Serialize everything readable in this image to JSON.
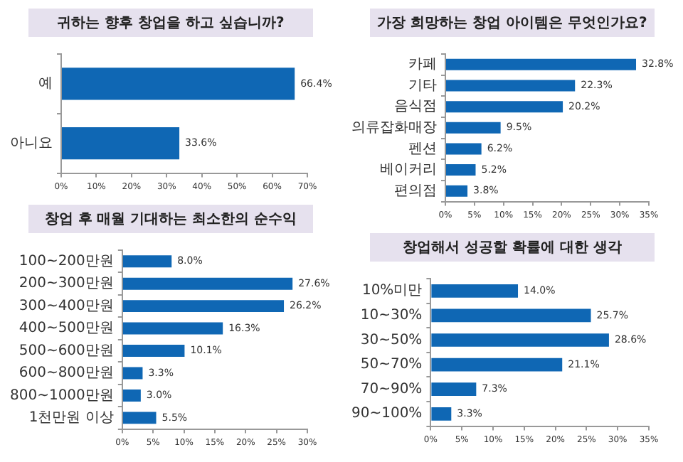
{
  "chart_data": [
    {
      "type": "bar",
      "orientation": "horizontal",
      "title": "귀하는 향후 창업을 하고 싶습니까?",
      "categories": [
        "예",
        "아니요"
      ],
      "values": [
        66.4,
        33.6
      ],
      "value_labels": [
        "66.4%",
        "33.6%"
      ],
      "color": "#0f67b4",
      "xlim": [
        0,
        70
      ],
      "xticks": [
        {
          "value": 0,
          "label": "0%"
        },
        {
          "value": 10,
          "label": "10%"
        },
        {
          "value": 20,
          "label": "20%"
        },
        {
          "value": 30,
          "label": "30%"
        },
        {
          "value": 40,
          "label": "40%"
        },
        {
          "value": 50,
          "label": "50%"
        },
        {
          "value": 60,
          "label": "60%"
        },
        {
          "value": 70,
          "label": "70%"
        }
      ],
      "grid": false,
      "legend": false
    },
    {
      "type": "bar",
      "orientation": "horizontal",
      "title": "가장 희망하는 창업 아이템은 무엇인가요?",
      "categories": [
        "카페",
        "기타",
        "음식점",
        "의류잡화매장",
        "펜션",
        "베이커리",
        "편의점"
      ],
      "values": [
        32.8,
        22.3,
        20.2,
        9.5,
        6.2,
        5.2,
        3.8
      ],
      "value_labels": [
        "32.8%",
        "22.3%",
        "20.2%",
        "9.5%",
        "6.2%",
        "5.2%",
        "3.8%"
      ],
      "color": "#0f67b4",
      "xlim": [
        0,
        35
      ],
      "xticks": [
        {
          "value": 0,
          "label": "0%"
        },
        {
          "value": 5,
          "label": "5%"
        },
        {
          "value": 10,
          "label": "10%"
        },
        {
          "value": 15,
          "label": "15%"
        },
        {
          "value": 20,
          "label": "20%"
        },
        {
          "value": 25,
          "label": "25%"
        },
        {
          "value": 30,
          "label": "30%"
        },
        {
          "value": 35,
          "label": "35%"
        }
      ],
      "grid": false,
      "legend": false
    },
    {
      "type": "bar",
      "orientation": "horizontal",
      "title": "창업 후 매월 기대하는 최소한의 순수익",
      "categories": [
        "100~200만원",
        "200~300만원",
        "300~400만원",
        "400~500만원",
        "500~600만원",
        "600~800만원",
        "800~1000만원",
        "1천만원 이상"
      ],
      "values": [
        8.0,
        27.6,
        26.2,
        16.3,
        10.1,
        3.3,
        3.0,
        5.5
      ],
      "value_labels": [
        "8.0%",
        "27.6%",
        "26.2%",
        "16.3%",
        "10.1%",
        "3.3%",
        "3.0%",
        "5.5%"
      ],
      "color": "#0f67b4",
      "xlim": [
        0,
        30
      ],
      "xticks": [
        {
          "value": 0,
          "label": "0%"
        },
        {
          "value": 5,
          "label": "5%"
        },
        {
          "value": 10,
          "label": "10%"
        },
        {
          "value": 15,
          "label": "15%"
        },
        {
          "value": 20,
          "label": "20%"
        },
        {
          "value": 25,
          "label": "25%"
        },
        {
          "value": 30,
          "label": "30%"
        }
      ],
      "grid": false,
      "legend": false
    },
    {
      "type": "bar",
      "orientation": "horizontal",
      "title": "창업해서 성공할 확률에 대한 생각",
      "categories": [
        "10%미만",
        "10~30%",
        "30~50%",
        "50~70%",
        "70~90%",
        "90~100%"
      ],
      "values": [
        14.0,
        25.7,
        28.6,
        21.1,
        7.3,
        3.3
      ],
      "value_labels": [
        "14.0%",
        "25.7%",
        "28.6%",
        "21.1%",
        "7.3%",
        "3.3%"
      ],
      "color": "#0f67b4",
      "xlim": [
        0,
        35
      ],
      "xticks": [
        {
          "value": 0,
          "label": "0%"
        },
        {
          "value": 5,
          "label": "5%"
        },
        {
          "value": 10,
          "label": "10%"
        },
        {
          "value": 15,
          "label": "15%"
        },
        {
          "value": 20,
          "label": "20%"
        },
        {
          "value": 25,
          "label": "25%"
        },
        {
          "value": 30,
          "label": "30%"
        },
        {
          "value": 35,
          "label": "35%"
        }
      ],
      "grid": false,
      "legend": false
    }
  ]
}
